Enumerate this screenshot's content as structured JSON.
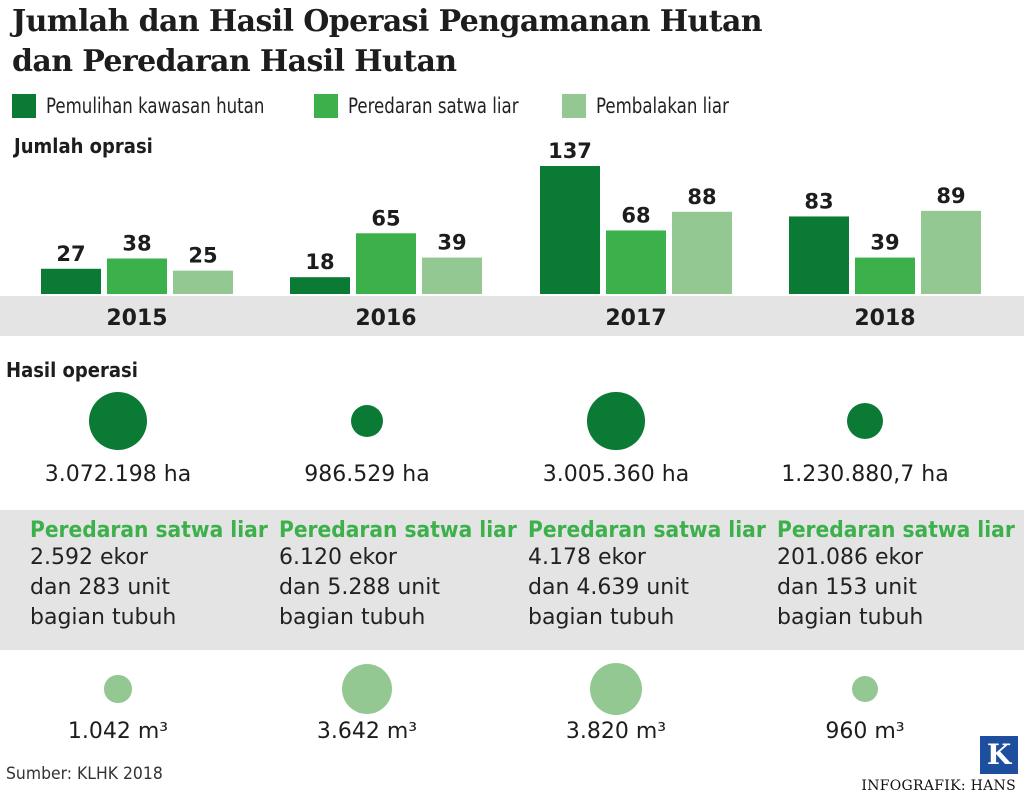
{
  "title_line1": "Jumlah dan Hasil Operasi Pengamanan Hutan",
  "title_line2": "dan Peredaran Hasil Hutan",
  "legend": [
    {
      "label": "Pemulihan kawasan hutan",
      "color": "#0a7a34"
    },
    {
      "label": "Peredaran satwa liar",
      "color": "#3cb04b"
    },
    {
      "label": "Pembalakan liar",
      "color": "#93c893"
    }
  ],
  "section_jumlah": "Jumlah oprasi",
  "section_hasil": "Hasil operasi",
  "chart_data": {
    "type": "bar",
    "categories": [
      "2015",
      "2016",
      "2017",
      "2018"
    ],
    "series": [
      {
        "name": "Pemulihan kawasan hutan",
        "values": [
          27,
          18,
          137,
          83
        ]
      },
      {
        "name": "Peredaran satwa liar",
        "values": [
          38,
          65,
          68,
          39
        ]
      },
      {
        "name": "Pembalakan liar",
        "values": [
          25,
          39,
          88,
          89
        ]
      }
    ],
    "ylabel": "Jumlah oprasi",
    "ylim": [
      0,
      137
    ],
    "grid": false,
    "legend_position": "top-left"
  },
  "area_results": [
    {
      "label": "3.072.198 ha",
      "value": 3072198
    },
    {
      "label": "986.529 ha",
      "value": 986529
    },
    {
      "label": "3.005.360 ha",
      "value": 3005360
    },
    {
      "label": "1.230.880,7 ha",
      "value": 1230880.7
    }
  ],
  "wildlife": [
    {
      "title": "Peredaran satwa liar",
      "lines": [
        "2.592 ekor",
        "dan 283 unit",
        "bagian tubuh"
      ]
    },
    {
      "title": "Peredaran satwa liar",
      "lines": [
        "6.120 ekor",
        "dan 5.288 unit",
        "bagian tubuh"
      ]
    },
    {
      "title": "Peredaran satwa liar",
      "lines": [
        "4.178 ekor",
        "dan 4.639 unit",
        "bagian tubuh"
      ]
    },
    {
      "title": "Peredaran satwa liar",
      "lines": [
        "201.086 ekor",
        "dan 153 unit",
        "bagian tubuh"
      ]
    }
  ],
  "timber_volume": [
    {
      "label": "1.042 m³",
      "value": 1042
    },
    {
      "label": "3.642 m³",
      "value": 3642
    },
    {
      "label": "3.820 m³",
      "value": 3820
    },
    {
      "label": "960 m³",
      "value": 960
    }
  ],
  "source": "Sumber: KLHK 2018",
  "credit": "INFOGRAFIK: HANS",
  "logo_letter": "K"
}
